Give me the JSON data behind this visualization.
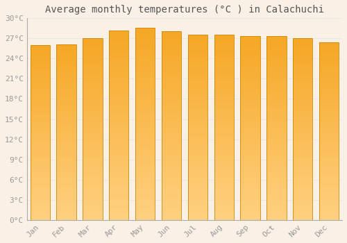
{
  "title": "Average monthly temperatures (°C ) in Calachuchi",
  "months": [
    "Jan",
    "Feb",
    "Mar",
    "Apr",
    "May",
    "Jun",
    "Jul",
    "Aug",
    "Sep",
    "Oct",
    "Nov",
    "Dec"
  ],
  "temperatures": [
    26.0,
    26.1,
    27.0,
    28.2,
    28.6,
    28.1,
    27.6,
    27.6,
    27.3,
    27.3,
    27.0,
    26.4
  ],
  "bar_color_top": "#F5A623",
  "bar_color_bottom": "#FFD080",
  "bar_edge_color": "#CC8800",
  "background_color": "#FAF0E6",
  "grid_color": "#E8E8E8",
  "ytick_labels": [
    "0°C",
    "3°C",
    "6°C",
    "9°C",
    "12°C",
    "15°C",
    "18°C",
    "21°C",
    "24°C",
    "27°C",
    "30°C"
  ],
  "ytick_values": [
    0,
    3,
    6,
    9,
    12,
    15,
    18,
    21,
    24,
    27,
    30
  ],
  "ylim": [
    0,
    30
  ],
  "title_fontsize": 10,
  "tick_fontsize": 8,
  "tick_color": "#999999",
  "bar_width": 0.75
}
